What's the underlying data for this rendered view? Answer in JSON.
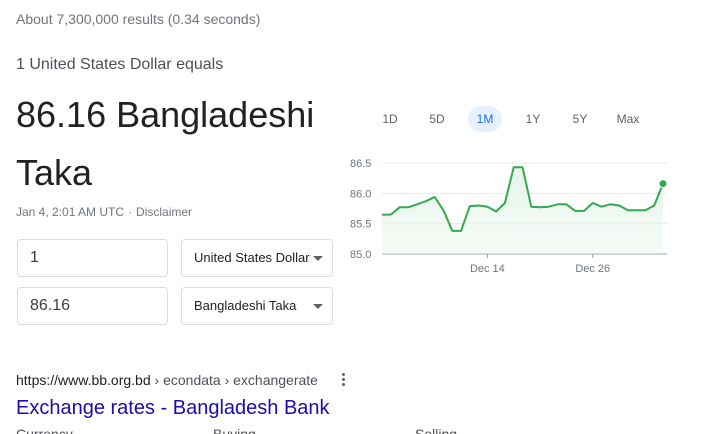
{
  "search": {
    "result_stats": "About 7,300,000 results (0.34 seconds)"
  },
  "converter": {
    "equals_text": "1 United States Dollar equals",
    "value_line1": "86.16 Bangladeshi",
    "value_line2": "Taka",
    "timestamp": "Jan 4, 2:01 AM UTC",
    "disclaimer": "Disclaimer",
    "from_amount": "1",
    "from_currency": "United States Dollar",
    "to_amount": "86.16",
    "to_currency": "Bangladeshi Taka"
  },
  "range_tabs": [
    {
      "label": "1D",
      "active": false
    },
    {
      "label": "5D",
      "active": false
    },
    {
      "label": "1M",
      "active": true
    },
    {
      "label": "1Y",
      "active": false
    },
    {
      "label": "5Y",
      "active": false
    },
    {
      "label": "Max",
      "active": false
    }
  ],
  "chart_data": {
    "type": "line",
    "y_ticks": [
      "86.5",
      "86.0",
      "85.5",
      "85.0"
    ],
    "ylim": [
      85.0,
      86.5
    ],
    "x_ticks": [
      {
        "label": "Dec 14",
        "index": 12
      },
      {
        "label": "Dec 26",
        "index": 24
      }
    ],
    "values": [
      85.65,
      85.65,
      85.77,
      85.77,
      85.82,
      85.87,
      85.94,
      85.72,
      85.38,
      85.38,
      85.79,
      85.8,
      85.78,
      85.7,
      85.84,
      86.43,
      86.43,
      85.78,
      85.77,
      85.78,
      85.82,
      85.82,
      85.71,
      85.71,
      85.84,
      85.78,
      85.82,
      85.8,
      85.72,
      85.72,
      85.72,
      85.8,
      86.16
    ],
    "line_color": "#34a853",
    "fill_color": "#e6f4ea",
    "grid": true,
    "last_point_marker": true
  },
  "result": {
    "url": "https://www.bb.org.bd",
    "breadcrumbs": "› econdata › exchangerate",
    "title": "Exchange rates - Bangladesh Bank",
    "table_headers": [
      "Currency",
      "Buying",
      "Selling"
    ]
  }
}
